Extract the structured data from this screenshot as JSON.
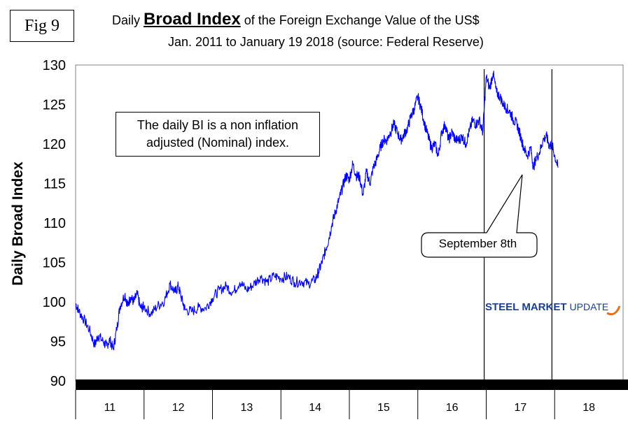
{
  "figure_label": "Fig 9",
  "title_prefix": "Daily ",
  "title_bold": "Broad Index",
  "title_suffix": " of the Foreign Exchange Value of the US$",
  "subtitle": "Jan. 2011 to January 19 2018 (source: Federal Reserve)",
  "note_line1": "The daily BI is a non inflation",
  "note_line2": "adjusted (Nominal) index.",
  "callout": "September 8th",
  "logo": {
    "steel": "STEEL",
    "market": "MARKET",
    "update": "UPDATE"
  },
  "colors": {
    "line": "#0000ff",
    "axis": "#000000",
    "logo": "#1a3f8f"
  },
  "chart_data": {
    "type": "line",
    "title": "Daily Broad Index of the Foreign Exchange Value of the US$",
    "ylabel": "Daily Broad Index",
    "xlabel": "",
    "ylim": [
      90,
      130
    ],
    "yticks": [
      90,
      95,
      100,
      105,
      110,
      115,
      120,
      125,
      130
    ],
    "xlim": [
      2011.0,
      2019.0
    ],
    "categories": [
      "11",
      "12",
      "13",
      "14",
      "15",
      "16",
      "17",
      "18"
    ],
    "vertical_markers": [
      2016.97,
      2017.96
    ],
    "series": [
      {
        "name": "Broad Index",
        "x": [
          2011.0,
          2011.05,
          2011.12,
          2011.2,
          2011.28,
          2011.33,
          2011.4,
          2011.45,
          2011.5,
          2011.55,
          2011.6,
          2011.65,
          2011.72,
          2011.76,
          2011.8,
          2011.85,
          2011.9,
          2011.95,
          2012.0,
          2012.1,
          2012.2,
          2012.3,
          2012.38,
          2012.45,
          2012.5,
          2012.55,
          2012.6,
          2012.7,
          2012.8,
          2012.9,
          2013.0,
          2013.1,
          2013.2,
          2013.3,
          2013.4,
          2013.5,
          2013.6,
          2013.7,
          2013.8,
          2013.9,
          2014.0,
          2014.1,
          2014.2,
          2014.3,
          2014.4,
          2014.5,
          2014.55,
          2014.6,
          2014.65,
          2014.7,
          2014.75,
          2014.8,
          2014.85,
          2014.9,
          2014.95,
          2015.0,
          2015.05,
          2015.1,
          2015.15,
          2015.2,
          2015.25,
          2015.3,
          2015.35,
          2015.4,
          2015.45,
          2015.5,
          2015.55,
          2015.6,
          2015.65,
          2015.7,
          2015.75,
          2015.8,
          2015.85,
          2015.9,
          2015.95,
          2016.0,
          2016.05,
          2016.1,
          2016.15,
          2016.2,
          2016.25,
          2016.3,
          2016.35,
          2016.4,
          2016.45,
          2016.5,
          2016.55,
          2016.6,
          2016.65,
          2016.7,
          2016.75,
          2016.8,
          2016.85,
          2016.9,
          2016.95,
          2017.0,
          2017.05,
          2017.1,
          2017.15,
          2017.2,
          2017.25,
          2017.3,
          2017.35,
          2017.4,
          2017.45,
          2017.5,
          2017.55,
          2017.6,
          2017.65,
          2017.69,
          2017.72,
          2017.78,
          2017.83,
          2017.88,
          2017.92,
          2017.96,
          2018.0,
          2018.05
        ],
        "values": [
          99.8,
          98.8,
          97.8,
          96.5,
          94.5,
          95.8,
          95.0,
          94.4,
          95.2,
          94.0,
          96.5,
          99.5,
          101.0,
          99.5,
          100.6,
          100.0,
          101.0,
          99.2,
          99.4,
          98.5,
          99.5,
          100.2,
          102.3,
          101.2,
          102.0,
          100.4,
          99.0,
          98.8,
          99.3,
          99.2,
          100.5,
          101.5,
          102.0,
          101.2,
          102.5,
          101.5,
          102.2,
          103.2,
          102.5,
          103.3,
          103.0,
          103.2,
          102.5,
          102.6,
          102.3,
          102.8,
          103.8,
          105.0,
          106.5,
          108.0,
          110.0,
          111.5,
          113.0,
          114.5,
          116.0,
          115.5,
          117.5,
          116.0,
          115.8,
          113.5,
          116.5,
          115.0,
          117.0,
          118.0,
          119.5,
          120.5,
          120.5,
          121.5,
          122.5,
          121.5,
          120.5,
          121.2,
          122.0,
          123.5,
          124.5,
          126.0,
          124.5,
          122.5,
          121.0,
          119.5,
          120.0,
          118.5,
          121.5,
          122.5,
          120.5,
          121.5,
          120.5,
          120.5,
          121.0,
          120.0,
          121.5,
          123.0,
          122.5,
          123.0,
          121.5,
          128.5,
          127.0,
          129.0,
          126.5,
          126.0,
          125.0,
          124.5,
          124.0,
          123.0,
          122.5,
          121.0,
          119.5,
          118.5,
          119.5,
          117.0,
          118.0,
          119.0,
          120.5,
          121.0,
          119.8,
          120.0,
          118.5,
          117.0
        ]
      }
    ]
  }
}
